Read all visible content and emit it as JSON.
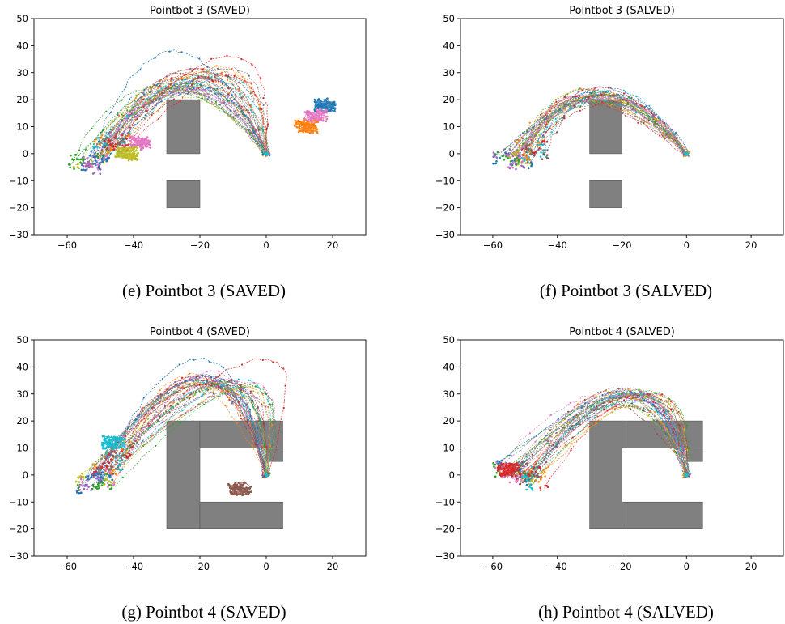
{
  "chart_data": [
    {
      "id": "e",
      "type": "line",
      "title": "Pointbot 3 (SAVED)",
      "caption": "(e) Pointbot 3 (SAVED)",
      "xlim": [
        -70,
        30
      ],
      "ylim": [
        -30,
        50
      ],
      "xticks": [
        -60,
        -40,
        -20,
        0,
        20
      ],
      "yticks": [
        -30,
        -20,
        -10,
        0,
        10,
        20,
        30,
        40,
        50
      ],
      "grid": false,
      "obstacles": [
        {
          "x": [
            -30,
            -20
          ],
          "y": [
            0,
            20
          ]
        },
        {
          "x": [
            -30,
            -20
          ],
          "y": [
            -20,
            -10
          ]
        }
      ],
      "trajectories": {
        "count": 45,
        "start": [
          0,
          0
        ],
        "goals": [
          [
            -52,
            -2
          ],
          [
            -48,
            2
          ],
          [
            -55,
            -4
          ],
          [
            -45,
            4
          ]
        ],
        "apex": [
          [
            -25,
            26
          ],
          [
            -20,
            29
          ],
          [
            -28,
            24
          ],
          [
            -15,
            30
          ]
        ],
        "extreme": [
          [
            -28,
            38
          ],
          [
            -10,
            36
          ]
        ],
        "clusters": [
          {
            "x": 18,
            "y": 18,
            "color": "#1f77b4"
          },
          {
            "x": 15,
            "y": 14,
            "color": "#e377c2"
          },
          {
            "x": 12,
            "y": 10,
            "color": "#ff7f0e"
          },
          {
            "x": -38,
            "y": 4,
            "color": "#e377c2"
          },
          {
            "x": -42,
            "y": 0,
            "color": "#bcbd22"
          }
        ]
      }
    },
    {
      "id": "f",
      "type": "line",
      "title": "Pointbot 3 (SALVED)",
      "caption": "(f) Pointbot 3 (SALVED)",
      "xlim": [
        -70,
        30
      ],
      "ylim": [
        -30,
        50
      ],
      "xticks": [
        -60,
        -40,
        -20,
        0,
        20
      ],
      "yticks": [
        -30,
        -20,
        -10,
        0,
        10,
        20,
        30,
        40,
        50
      ],
      "grid": false,
      "obstacles": [
        {
          "x": [
            -30,
            -20
          ],
          "y": [
            0,
            20
          ]
        },
        {
          "x": [
            -30,
            -20
          ],
          "y": [
            -20,
            -10
          ]
        }
      ],
      "trajectories": {
        "count": 40,
        "start": [
          0,
          0
        ],
        "goals": [
          [
            -52,
            -2
          ],
          [
            -50,
            0
          ],
          [
            -55,
            -1
          ],
          [
            -48,
            2
          ]
        ],
        "apex": [
          [
            -27,
            22
          ],
          [
            -25,
            21
          ],
          [
            -30,
            21
          ]
        ],
        "extreme": [],
        "clusters": []
      }
    },
    {
      "id": "g",
      "type": "line",
      "title": "Pointbot 4 (SAVED)",
      "caption": "(g) Pointbot 4 (SAVED)",
      "xlim": [
        -70,
        30
      ],
      "ylim": [
        -30,
        50
      ],
      "xticks": [
        -60,
        -40,
        -20,
        0,
        20
      ],
      "yticks": [
        -30,
        -20,
        -10,
        0,
        10,
        20,
        30,
        40,
        50
      ],
      "grid": false,
      "obstacles": [
        {
          "x": [
            -30,
            -20
          ],
          "y": [
            -20,
            20
          ]
        },
        {
          "x": [
            -20,
            5
          ],
          "y": [
            10,
            20
          ]
        },
        {
          "x": [
            0,
            5
          ],
          "y": [
            5,
            10
          ]
        },
        {
          "x": [
            -20,
            5
          ],
          "y": [
            -20,
            -10
          ]
        }
      ],
      "trajectories": {
        "count": 45,
        "start": [
          0,
          0
        ],
        "goals": [
          [
            -50,
            -2
          ],
          [
            -48,
            2
          ],
          [
            -54,
            -3
          ],
          [
            -45,
            8
          ]
        ],
        "apex": [
          [
            -15,
            34
          ],
          [
            -20,
            36
          ],
          [
            -10,
            33
          ]
        ],
        "extreme": [
          [
            -20,
            43
          ],
          [
            0,
            43
          ]
        ],
        "clusters": [
          {
            "x": -46,
            "y": 12,
            "color": "#17becf"
          },
          {
            "x": -8,
            "y": -5,
            "color": "#8c564b"
          }
        ]
      }
    },
    {
      "id": "h",
      "type": "line",
      "title": "Pointbot 4 (SALVED)",
      "caption": "(h) Pointbot 4 (SALVED)",
      "xlim": [
        -70,
        30
      ],
      "ylim": [
        -30,
        50
      ],
      "xticks": [
        -60,
        -40,
        -20,
        0,
        20
      ],
      "yticks": [
        -30,
        -20,
        -10,
        0,
        10,
        20,
        30,
        40,
        50
      ],
      "grid": false,
      "obstacles": [
        {
          "x": [
            -30,
            -20
          ],
          "y": [
            -20,
            20
          ]
        },
        {
          "x": [
            -20,
            5
          ],
          "y": [
            10,
            20
          ]
        },
        {
          "x": [
            0,
            5
          ],
          "y": [
            5,
            10
          ]
        },
        {
          "x": [
            -20,
            5
          ],
          "y": [
            -20,
            -10
          ]
        }
      ],
      "trajectories": {
        "count": 40,
        "start": [
          0,
          0
        ],
        "goals": [
          [
            -52,
            0
          ],
          [
            -50,
            2
          ],
          [
            -56,
            2
          ],
          [
            -48,
            -2
          ]
        ],
        "apex": [
          [
            -18,
            29
          ],
          [
            -15,
            30
          ],
          [
            -20,
            28
          ]
        ],
        "extreme": [
          [
            -20,
            31
          ]
        ],
        "clusters": [
          {
            "x": -55,
            "y": 2,
            "color": "#d62728"
          }
        ]
      }
    }
  ],
  "palette": [
    "#1f77b4",
    "#ff7f0e",
    "#2ca02c",
    "#d62728",
    "#9467bd",
    "#8c564b",
    "#e377c2",
    "#7f7f7f",
    "#bcbd22",
    "#17becf"
  ],
  "obstacle_color": "#808080"
}
